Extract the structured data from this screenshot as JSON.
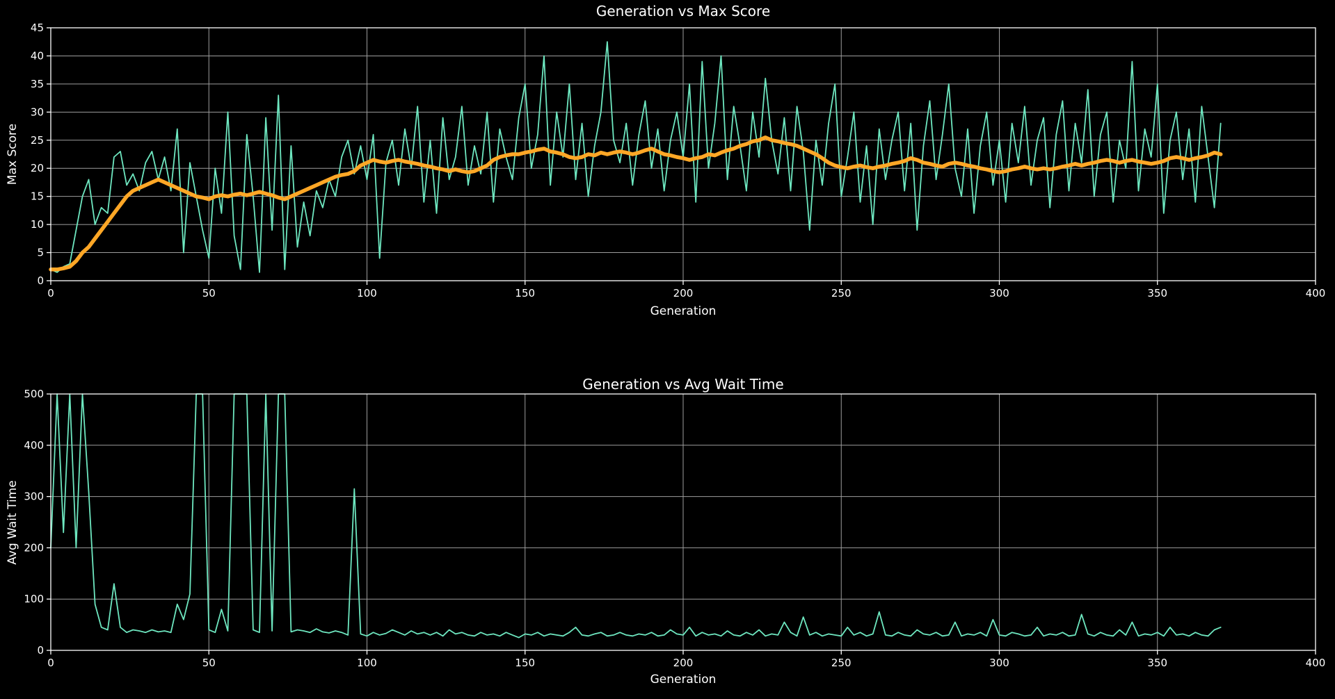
{
  "style": {
    "background": "#000000",
    "text_color": "#ffffff",
    "grid_color": "#9e9e9e",
    "spine_color": "#ffffff",
    "raw_line_color": "#6EE7C0",
    "avg_line_color": "#FFA726"
  },
  "chart_data": [
    {
      "type": "line",
      "title": "Generation vs Max Score",
      "xlabel": "Generation",
      "ylabel": "Max Score",
      "xlim": [
        0,
        400
      ],
      "ylim": [
        0,
        45
      ],
      "x_ticks": [
        0,
        50,
        100,
        150,
        200,
        250,
        300,
        350,
        400
      ],
      "y_ticks": [
        0,
        5,
        10,
        15,
        20,
        25,
        30,
        35,
        40,
        45
      ],
      "grid": true,
      "legend": "none",
      "x_start": 0,
      "x_step": 2,
      "series": [
        {
          "name": "max-score-raw",
          "color": "#6EE7C0",
          "width": 1.8,
          "values": [
            2,
            1.5,
            2.5,
            3,
            9,
            15,
            18,
            10,
            13,
            12,
            22,
            23,
            17,
            19,
            16,
            21,
            23,
            18,
            22,
            16,
            27,
            5,
            21,
            15,
            9,
            4,
            20,
            12,
            30,
            8,
            2,
            26,
            15,
            1.5,
            29,
            9,
            33,
            2,
            24,
            6,
            14,
            8,
            16,
            13,
            18,
            15,
            22,
            25,
            19,
            24,
            18,
            26,
            4,
            21,
            25,
            17,
            27,
            20,
            31,
            14,
            25,
            12,
            29,
            18,
            22,
            31,
            17,
            24,
            19,
            30,
            14,
            27,
            22,
            18,
            29,
            35,
            20,
            26,
            40,
            17,
            30,
            22,
            35,
            18,
            28,
            15,
            24,
            30,
            42.5,
            25,
            21,
            28,
            17,
            26,
            32,
            20,
            27,
            16,
            25,
            30,
            22,
            35,
            14,
            39,
            20,
            28,
            40,
            18,
            31,
            24,
            16,
            30,
            22,
            36,
            25,
            19,
            29,
            16,
            31,
            23,
            9,
            25,
            17,
            28,
            35,
            15,
            22,
            30,
            14,
            24,
            10,
            27,
            18,
            25,
            30,
            16,
            28,
            9,
            24,
            32,
            18,
            26,
            35,
            20,
            15,
            27,
            12,
            24,
            30,
            17,
            25,
            14,
            28,
            21,
            31,
            17,
            25,
            29,
            13,
            26,
            32,
            16,
            28,
            21,
            34,
            15,
            26,
            30,
            14,
            25,
            20,
            39,
            16,
            27,
            22,
            35,
            12,
            25,
            30,
            18,
            27,
            14,
            31,
            22,
            13,
            28
          ]
        },
        {
          "name": "max-score-moving-average",
          "color": "#FFA726",
          "width": 5.5,
          "values": [
            2,
            2,
            2.2,
            2.5,
            3.5,
            5,
            6,
            7.5,
            9,
            10.5,
            12,
            13.5,
            15,
            16,
            16.5,
            17,
            17.5,
            18,
            17.5,
            17,
            16.5,
            16,
            15.5,
            15,
            14.8,
            14.5,
            15,
            15.2,
            15,
            15.3,
            15.5,
            15.2,
            15.5,
            15.8,
            15.5,
            15.2,
            14.8,
            14.5,
            15,
            15.5,
            16,
            16.5,
            17,
            17.5,
            18,
            18.5,
            18.8,
            19,
            19.5,
            20.5,
            21,
            21.5,
            21.2,
            21,
            21.3,
            21.5,
            21.2,
            21,
            20.8,
            20.5,
            20.3,
            20,
            19.8,
            19.5,
            19.8,
            19.5,
            19.3,
            19.5,
            20,
            20.5,
            21.5,
            22,
            22.3,
            22.5,
            22.5,
            22.8,
            23,
            23.3,
            23.5,
            23,
            22.8,
            22.5,
            22,
            21.8,
            22,
            22.5,
            22.3,
            22.8,
            22.5,
            22.8,
            23,
            22.8,
            22.5,
            22.8,
            23.2,
            23.5,
            23,
            22.5,
            22.3,
            22,
            21.8,
            21.5,
            21.8,
            22,
            22.5,
            22.3,
            22.8,
            23.2,
            23.5,
            24,
            24.3,
            24.8,
            25,
            25.5,
            25,
            24.8,
            24.5,
            24.3,
            24,
            23.5,
            23,
            22.5,
            21.8,
            21,
            20.5,
            20.2,
            20,
            20.3,
            20.5,
            20.2,
            20,
            20.3,
            20.5,
            20.8,
            21,
            21.3,
            21.8,
            21.5,
            21,
            20.8,
            20.5,
            20.3,
            20.8,
            21,
            20.8,
            20.5,
            20.3,
            20,
            19.8,
            19.5,
            19.3,
            19.5,
            19.8,
            20,
            20.3,
            20,
            19.8,
            20,
            19.8,
            20,
            20.3,
            20.5,
            20.8,
            20.5,
            20.8,
            21,
            21.3,
            21.5,
            21.3,
            21,
            21.3,
            21.5,
            21.2,
            21,
            20.8,
            21,
            21.3,
            21.8,
            22,
            21.8,
            21.5,
            21.8,
            22,
            22.3,
            22.8,
            22.5
          ]
        }
      ]
    },
    {
      "type": "line",
      "title": "Generation vs Avg Wait Time",
      "xlabel": "Generation",
      "ylabel": "Avg Wait Time",
      "xlim": [
        0,
        400
      ],
      "ylim": [
        0,
        500
      ],
      "x_ticks": [
        0,
        50,
        100,
        150,
        200,
        250,
        300,
        350,
        400
      ],
      "y_ticks": [
        0,
        100,
        200,
        300,
        400,
        500
      ],
      "grid": true,
      "legend": "none",
      "x_start": 0,
      "x_step": 2,
      "series": [
        {
          "name": "avg-wait-time",
          "color": "#6EE7C0",
          "width": 1.8,
          "values": [
            200,
            500,
            230,
            500,
            200,
            500,
            310,
            90,
            45,
            40,
            130,
            45,
            35,
            40,
            38,
            35,
            40,
            36,
            38,
            35,
            90,
            60,
            110,
            500,
            500,
            40,
            35,
            80,
            38,
            500,
            500,
            500,
            40,
            35,
            500,
            38,
            500,
            500,
            36,
            40,
            38,
            35,
            42,
            36,
            34,
            38,
            35,
            30,
            315,
            32,
            28,
            35,
            30,
            33,
            40,
            35,
            30,
            38,
            32,
            35,
            30,
            35,
            28,
            40,
            32,
            35,
            30,
            28,
            35,
            30,
            32,
            28,
            35,
            30,
            25,
            32,
            30,
            35,
            28,
            32,
            30,
            28,
            35,
            45,
            30,
            28,
            32,
            35,
            28,
            30,
            35,
            30,
            28,
            32,
            30,
            35,
            28,
            30,
            40,
            32,
            30,
            45,
            28,
            35,
            30,
            32,
            28,
            38,
            30,
            28,
            35,
            30,
            40,
            28,
            32,
            30,
            55,
            35,
            28,
            65,
            30,
            35,
            28,
            32,
            30,
            28,
            45,
            30,
            35,
            28,
            32,
            75,
            30,
            28,
            35,
            30,
            28,
            40,
            32,
            30,
            35,
            28,
            30,
            55,
            28,
            32,
            30,
            35,
            28,
            60,
            30,
            28,
            35,
            32,
            28,
            30,
            45,
            28,
            32,
            30,
            35,
            28,
            30,
            70,
            32,
            28,
            35,
            30,
            28,
            40,
            30,
            55,
            28,
            32,
            30,
            35,
            28,
            45,
            30,
            32,
            28,
            35,
            30,
            28,
            40,
            45
          ]
        }
      ]
    }
  ]
}
